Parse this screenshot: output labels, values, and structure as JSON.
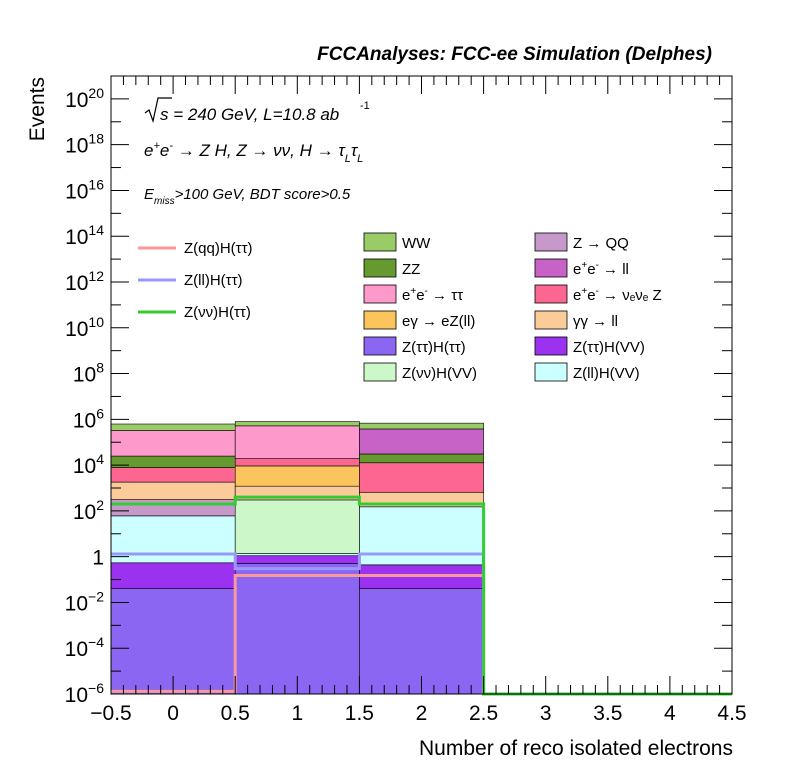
{
  "chart_data": {
    "type": "bar",
    "stacked": true,
    "log_y": true,
    "title": "FCCAnalyses: FCC-ee Simulation (Delphes)",
    "annotations": {
      "line1": "√s = 240 GeV, L=10.8 ab ^-1",
      "line2": "e+e- → Z H, Z → νν, H → τ_L τ_L",
      "line3": "E_miss>100 GeV, BDT score>0.5"
    },
    "xlabel": "Number of reco isolated electrons",
    "ylabel": "Events",
    "xlim": [
      -0.5,
      4.5
    ],
    "ylim": [
      1e-06,
      1e+21
    ],
    "x_bins": [
      [
        -0.5,
        0.5
      ],
      [
        0.5,
        1.5
      ],
      [
        1.5,
        2.5
      ],
      [
        2.5,
        3.5
      ],
      [
        3.5,
        4.5
      ]
    ],
    "x_ticks": [
      "−0.5",
      "0",
      "0.5",
      "1",
      "1.5",
      "2",
      "2.5",
      "3",
      "3.5",
      "4",
      "4.5"
    ],
    "y_ticks": [
      {
        "base": "10",
        "exp": "−6",
        "value": 1e-06
      },
      {
        "base": "10",
        "exp": "−4",
        "value": 0.0001
      },
      {
        "base": "10",
        "exp": "−2",
        "value": 0.01
      },
      {
        "base": "1",
        "exp": "",
        "value": 1
      },
      {
        "base": "10",
        "exp": "2",
        "value": 100.0
      },
      {
        "base": "10",
        "exp": "4",
        "value": 10000.0
      },
      {
        "base": "10",
        "exp": "6",
        "value": 1000000.0
      },
      {
        "base": "10",
        "exp": "8",
        "value": 100000000.0
      },
      {
        "base": "10",
        "exp": "10",
        "value": 10000000000.0
      },
      {
        "base": "10",
        "exp": "12",
        "value": 1000000000000.0
      },
      {
        "base": "10",
        "exp": "14",
        "value": 100000000000000.0
      },
      {
        "base": "10",
        "exp": "16",
        "value": 1e+16
      },
      {
        "base": "10",
        "exp": "18",
        "value": 1e+18
      },
      {
        "base": "10",
        "exp": "20",
        "value": 1e+20
      }
    ],
    "stack_series": [
      {
        "name": "Z(ττ)H(ττ)",
        "color": "#8b66f2",
        "values": [
          0.04,
          0.5,
          0.04,
          0,
          0
        ]
      },
      {
        "name": "Z(ττ)H(VV)",
        "color": "#9b32f0",
        "values": [
          0.5,
          0.6,
          0.4,
          0,
          0
        ]
      },
      {
        "name": "Z(ll)H(VV)",
        "color": "#ccffff",
        "values": [
          60,
          0.3,
          150,
          0,
          0
        ]
      },
      {
        "name": "Z(νν)H(VV)",
        "color": "#ccf7c8",
        "values": [
          0,
          300,
          0,
          0,
          0
        ]
      },
      {
        "name": "Z → QQ",
        "color": "#c799cb",
        "values": [
          250,
          0,
          0,
          0,
          0
        ]
      },
      {
        "name": "γγ → ll",
        "color": "#fbcb99",
        "values": [
          1500,
          900,
          500,
          0,
          0
        ]
      },
      {
        "name": "eγ → eZ(ll)",
        "color": "#fcc45c",
        "values": [
          0,
          8000,
          0,
          0,
          0
        ]
      },
      {
        "name": "e+e- → ν_e ν_e Z",
        "color": "#fc6691",
        "values": [
          6000,
          10000,
          12000,
          0,
          0
        ]
      },
      {
        "name": "ZZ",
        "color": "#66992f",
        "values": [
          17000,
          0,
          18000,
          0,
          0
        ]
      },
      {
        "name": "e+e- → ll",
        "color": "#c762c7",
        "values": [
          0,
          0,
          350000,
          0,
          0
        ]
      },
      {
        "name": "e+e- → ττ",
        "color": "#fe99cc",
        "values": [
          300000,
          500000,
          0,
          0,
          0
        ]
      },
      {
        "name": "WW",
        "color": "#99cc66",
        "values": [
          300000,
          280000,
          300000,
          0,
          0
        ]
      }
    ],
    "line_series": [
      {
        "name": "Z(qq)H(ττ)",
        "color": "#fa9999",
        "values": [
          1.3e-06,
          0.15,
          0.15,
          1e-06,
          1e-06
        ]
      },
      {
        "name": "Z(ll)H(ττ)",
        "color": "#9999fa",
        "values": [
          1.3,
          0.3,
          1.3,
          1e-06,
          1e-06
        ]
      },
      {
        "name": "Z(νν)H(ττ)",
        "color": "#33cc33",
        "values": [
          200,
          400,
          200,
          1e-06,
          1e-06
        ]
      }
    ],
    "legend_placement": "upper center",
    "grid": false
  }
}
